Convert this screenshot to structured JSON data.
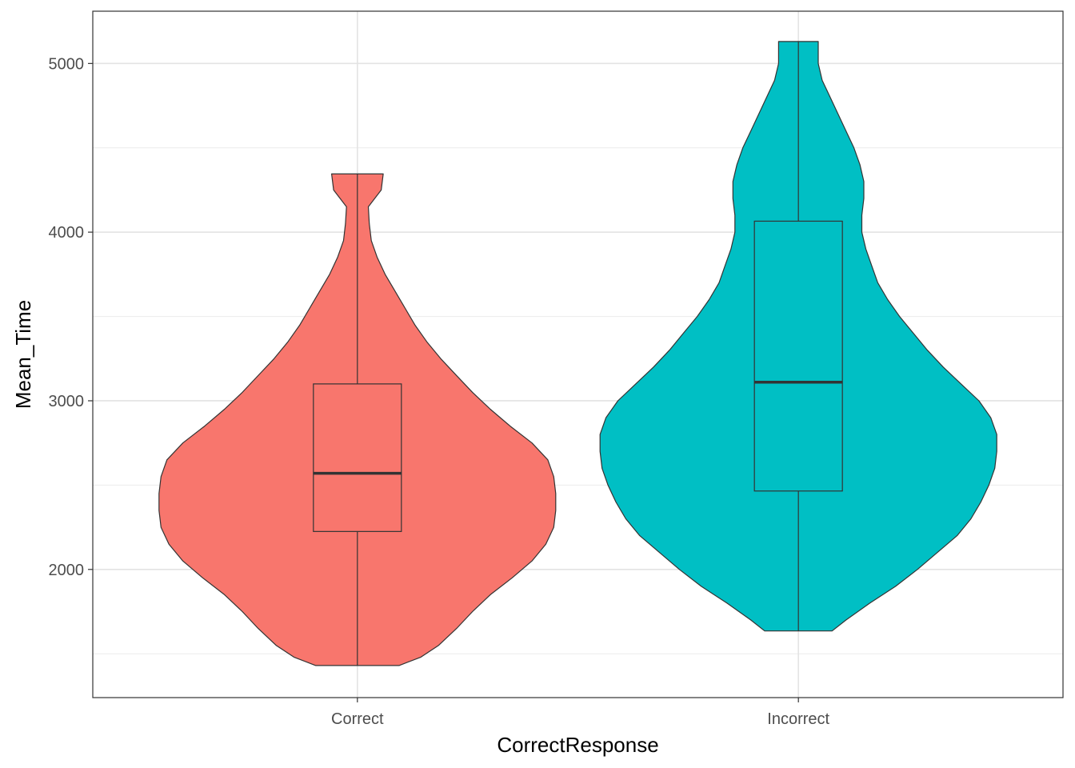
{
  "chart_data": {
    "type": "violin",
    "xlabel": "CorrectResponse",
    "ylabel": "Mean_Time",
    "categories": [
      "Correct",
      "Incorrect"
    ],
    "ylim": [
      1240,
      5310
    ],
    "y_major_ticks": [
      2000,
      3000,
      4000,
      5000
    ],
    "y_minor_ticks": [
      1500,
      2500,
      3500,
      4500
    ],
    "y_tick_labels": [
      "2000",
      "3000",
      "4000",
      "5000"
    ],
    "grid": true,
    "legend": "none",
    "series": [
      {
        "category": "Correct",
        "color": "#F8766D",
        "min": 1430,
        "q1": 2225,
        "median": 2570,
        "q3": 3100,
        "max": 4345,
        "density_profile": [
          [
            1430,
            0.21
          ],
          [
            1480,
            0.32
          ],
          [
            1550,
            0.41
          ],
          [
            1650,
            0.5
          ],
          [
            1750,
            0.58
          ],
          [
            1850,
            0.67
          ],
          [
            1950,
            0.78
          ],
          [
            2050,
            0.88
          ],
          [
            2150,
            0.95
          ],
          [
            2250,
            0.99
          ],
          [
            2350,
            1.0
          ],
          [
            2450,
            1.0
          ],
          [
            2550,
            0.99
          ],
          [
            2650,
            0.96
          ],
          [
            2750,
            0.88
          ],
          [
            2850,
            0.77
          ],
          [
            2950,
            0.67
          ],
          [
            3050,
            0.58
          ],
          [
            3150,
            0.5
          ],
          [
            3250,
            0.42
          ],
          [
            3350,
            0.35
          ],
          [
            3450,
            0.29
          ],
          [
            3550,
            0.24
          ],
          [
            3650,
            0.19
          ],
          [
            3750,
            0.14
          ],
          [
            3850,
            0.1
          ],
          [
            3950,
            0.07
          ],
          [
            4050,
            0.06
          ],
          [
            4150,
            0.055
          ],
          [
            4250,
            0.12
          ],
          [
            4345,
            0.13
          ]
        ]
      },
      {
        "category": "Incorrect",
        "color": "#00BFC4",
        "min": 1635,
        "q1": 2465,
        "median": 3110,
        "q3": 4065,
        "max": 5130,
        "density_profile": [
          [
            1635,
            0.17
          ],
          [
            1700,
            0.24
          ],
          [
            1800,
            0.36
          ],
          [
            1900,
            0.49
          ],
          [
            2000,
            0.6
          ],
          [
            2100,
            0.7
          ],
          [
            2200,
            0.8
          ],
          [
            2300,
            0.87
          ],
          [
            2400,
            0.92
          ],
          [
            2500,
            0.96
          ],
          [
            2600,
            0.99
          ],
          [
            2700,
            1.0
          ],
          [
            2800,
            1.0
          ],
          [
            2900,
            0.97
          ],
          [
            3000,
            0.91
          ],
          [
            3100,
            0.82
          ],
          [
            3200,
            0.73
          ],
          [
            3300,
            0.65
          ],
          [
            3400,
            0.58
          ],
          [
            3500,
            0.51
          ],
          [
            3600,
            0.45
          ],
          [
            3700,
            0.4
          ],
          [
            3800,
            0.37
          ],
          [
            3900,
            0.34
          ],
          [
            4000,
            0.32
          ],
          [
            4100,
            0.32
          ],
          [
            4200,
            0.33
          ],
          [
            4300,
            0.33
          ],
          [
            4400,
            0.31
          ],
          [
            4500,
            0.28
          ],
          [
            4600,
            0.24
          ],
          [
            4700,
            0.2
          ],
          [
            4800,
            0.16
          ],
          [
            4900,
            0.12
          ],
          [
            5000,
            0.1
          ],
          [
            5130,
            0.1
          ]
        ]
      }
    ]
  }
}
